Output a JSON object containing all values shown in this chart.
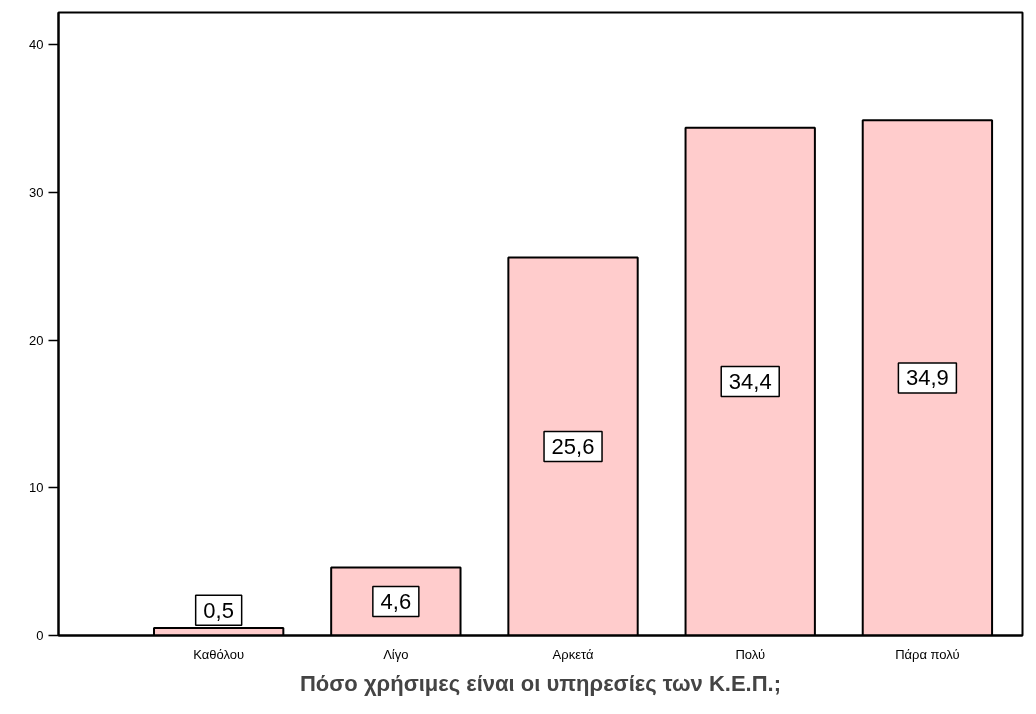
{
  "chart_data": {
    "type": "bar",
    "xlabel": "Πόσο χρήσιμες είναι οι υπηρεσίες των Κ.Ε.Π.;",
    "categories": [
      "Καθόλου",
      "Λίγο",
      "Αρκετά",
      "Πολύ",
      "Πάρα πολύ"
    ],
    "values": [
      0.5,
      4.6,
      25.6,
      34.4,
      34.9
    ],
    "value_labels": [
      "0,5",
      "4,6",
      "25,6",
      "34,4",
      "34,9"
    ],
    "color": "#ffcccc",
    "ylim": [
      0,
      42.2
    ],
    "yticks": [
      0,
      10,
      20,
      30,
      40
    ],
    "grid": false
  }
}
